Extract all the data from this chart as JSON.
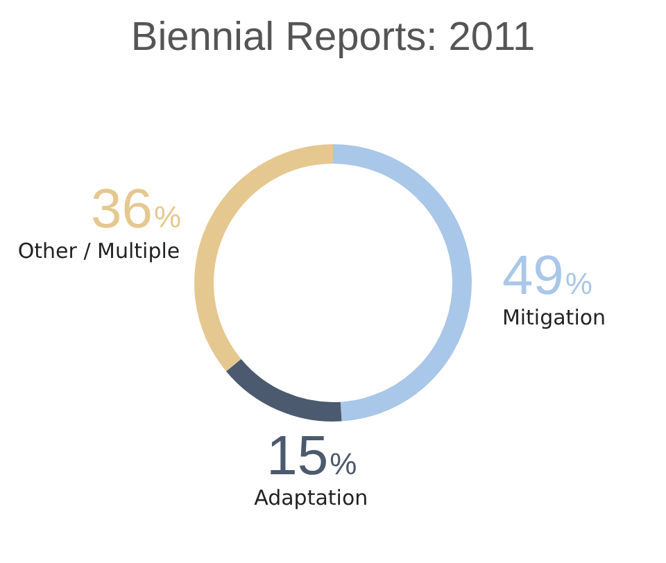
{
  "chart_data": {
    "type": "donut",
    "title": "Biennial Reports: 2011",
    "categories": [
      "Mitigation",
      "Adaptation",
      "Other / Multiple"
    ],
    "values": [
      49,
      15,
      36
    ],
    "colors": [
      "#a9c7e8",
      "#4b5a6e",
      "#e5c890"
    ],
    "value_labels": [
      "49%",
      "15%",
      "36%"
    ],
    "legend": false
  }
}
